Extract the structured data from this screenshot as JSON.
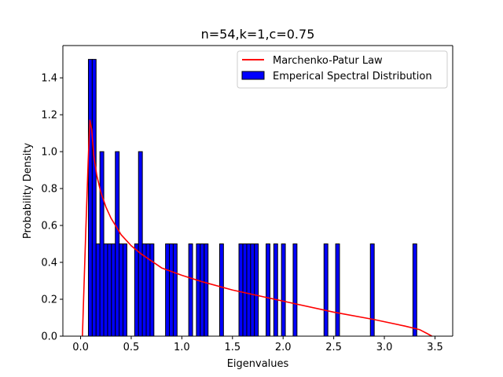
{
  "chart_data": {
    "type": "bar",
    "title": "n=54,k=1,c=0.75",
    "xlabel": "Eigenvalues",
    "ylabel": "Probability Density",
    "xlim": [
      -0.175,
      3.675
    ],
    "ylim": [
      0,
      1.575
    ],
    "xticks": [
      "0.0",
      "0.5",
      "1.0",
      "1.5",
      "2.0",
      "2.5",
      "3.0",
      "3.5"
    ],
    "yticks": [
      "0.0",
      "0.2",
      "0.4",
      "0.6",
      "0.8",
      "1.0",
      "1.2",
      "1.4"
    ],
    "grid": false,
    "legend_position": "top-right",
    "histogram": {
      "name": "Emperical Spectral Distribution",
      "color": "#0000ff",
      "edgecolor": "#000000",
      "bin_width": 0.038,
      "bin_starts": [
        0.077,
        0.115,
        0.153,
        0.191,
        0.229,
        0.267,
        0.305,
        0.343,
        0.381,
        0.419,
        0.534,
        0.572,
        0.61,
        0.648,
        0.686,
        0.839,
        0.877,
        0.915,
        1.068,
        1.144,
        1.182,
        1.221,
        1.373,
        1.564,
        1.603,
        1.641,
        1.679,
        1.717,
        1.832,
        1.908,
        1.984,
        2.099,
        2.404,
        2.519,
        2.862,
        3.282
      ],
      "values": [
        1.5,
        1.5,
        0.5,
        1.0,
        0.5,
        0.5,
        0.5,
        1.0,
        0.5,
        0.5,
        0.5,
        1.0,
        0.5,
        0.5,
        0.5,
        0.5,
        0.5,
        0.5,
        0.5,
        0.5,
        0.5,
        0.5,
        0.5,
        0.5,
        0.5,
        0.5,
        0.5,
        0.5,
        0.5,
        0.5,
        0.5,
        0.5,
        0.5,
        0.5,
        0.5,
        0.5
      ]
    },
    "curve": {
      "name": "Marchenko-Patur Law",
      "color": "#ff0000",
      "x": [
        0.018,
        0.05,
        0.075,
        0.092,
        0.11,
        0.13,
        0.16,
        0.2,
        0.25,
        0.3,
        0.4,
        0.5,
        0.6,
        0.8,
        1.0,
        1.2,
        1.5,
        2.0,
        2.5,
        2.9,
        3.2,
        3.35,
        3.42,
        3.47
      ],
      "y": [
        0.0,
        0.55,
        0.95,
        1.17,
        1.12,
        0.98,
        0.87,
        0.78,
        0.7,
        0.64,
        0.55,
        0.49,
        0.445,
        0.37,
        0.33,
        0.295,
        0.25,
        0.19,
        0.13,
        0.09,
        0.055,
        0.035,
        0.015,
        0.0
      ]
    }
  }
}
